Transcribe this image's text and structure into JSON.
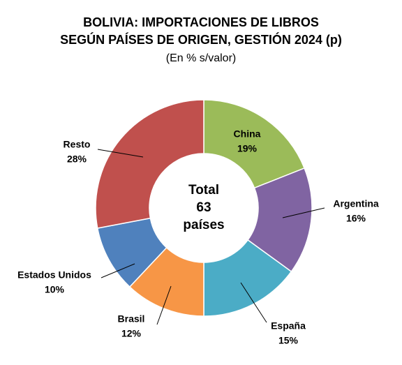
{
  "chart_data": {
    "type": "donut",
    "title": [
      "BOLIVIA: IMPORTACIONES DE LIBROS",
      "SEGÚN PAÍSES DE ORIGEN, GESTIÓN 2024 (p)"
    ],
    "subtitle": "(En % s/valor)",
    "center_text": [
      "Total",
      "63",
      "países"
    ],
    "categories": [
      "China",
      "Argentina",
      "España",
      "Brasil",
      "Estados Unidos",
      "Resto"
    ],
    "values": [
      19,
      16,
      15,
      12,
      10,
      28
    ],
    "value_labels": [
      "19%",
      "16%",
      "15%",
      "12%",
      "10%",
      "28%"
    ],
    "colors": [
      "#9bbb59",
      "#8064a2",
      "#4bacc6",
      "#f79646",
      "#4f81bd",
      "#c0504d"
    ]
  }
}
